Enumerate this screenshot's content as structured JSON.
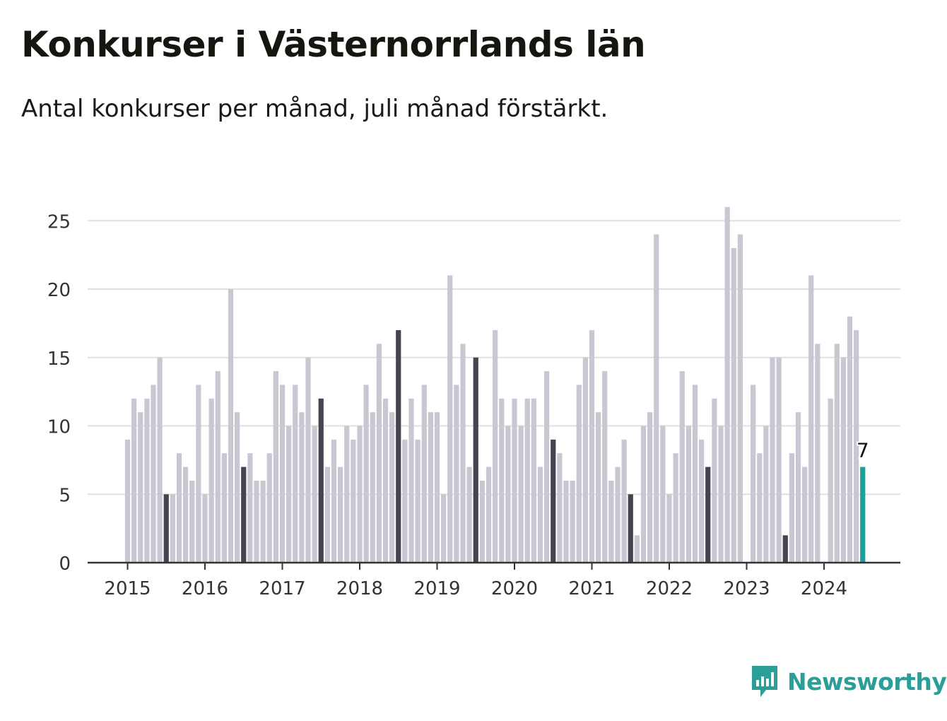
{
  "header": {
    "title": "Konkurser i Västernorrlands län",
    "subtitle": "Antal konkurser per månad, juli månad förstärkt."
  },
  "brand": {
    "name": "Newsworthy",
    "icon": "newsworthy-logo-icon"
  },
  "colors": {
    "bar": "#c8c7d2",
    "july": "#454552",
    "latest": "#1aa19a",
    "grid": "#e0e0e4",
    "axis": "#333333",
    "text": "#333333",
    "brand": "#2b9e98"
  },
  "chart_data": {
    "type": "bar",
    "title": "Konkurser i Västernorrlands län",
    "subtitle": "Antal konkurser per månad, juli månad förstärkt.",
    "xlabel": "",
    "ylabel": "",
    "ylim": [
      0,
      26
    ],
    "y_ticks": [
      0,
      5,
      10,
      15,
      20,
      25
    ],
    "x_ticks": [
      "2015",
      "2016",
      "2017",
      "2018",
      "2019",
      "2020",
      "2021",
      "2022",
      "2023",
      "2024"
    ],
    "grid": true,
    "start": "2015-01",
    "highlight_month": "juli",
    "highlight_last_label": "7",
    "values": [
      9,
      12,
      11,
      12,
      13,
      15,
      5,
      5,
      8,
      7,
      6,
      13,
      5,
      12,
      14,
      8,
      20,
      11,
      7,
      8,
      6,
      6,
      8,
      14,
      13,
      10,
      13,
      11,
      15,
      10,
      12,
      7,
      9,
      7,
      10,
      9,
      10,
      13,
      11,
      16,
      12,
      11,
      17,
      9,
      12,
      9,
      13,
      11,
      11,
      5,
      21,
      13,
      16,
      7,
      15,
      6,
      7,
      17,
      12,
      10,
      12,
      10,
      12,
      12,
      7,
      14,
      9,
      8,
      6,
      6,
      13,
      15,
      17,
      11,
      14,
      6,
      7,
      9,
      5,
      2,
      10,
      11,
      24,
      10,
      5,
      8,
      14,
      10,
      13,
      9,
      7,
      12,
      10,
      26,
      23,
      24,
      0,
      13,
      8,
      10,
      15,
      15,
      2,
      8,
      11,
      7,
      21,
      16,
      0,
      12,
      16,
      15,
      18,
      17,
      7
    ]
  }
}
